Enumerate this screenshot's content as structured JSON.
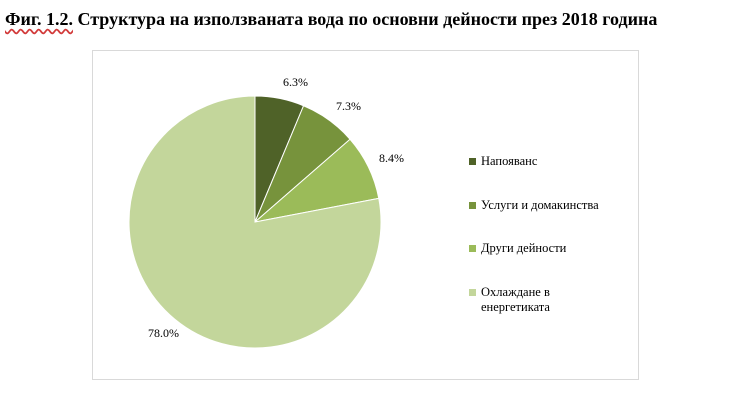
{
  "figure": {
    "prefix": "Фиг. 1.2.",
    "title": "Структура на използваната вода по основни дейности през 2018 година"
  },
  "chart_data": {
    "type": "pie",
    "title": "",
    "legend_position": "right",
    "categories": [
      "Напояванс",
      "Услуги и домакинства",
      "Други дейности",
      "Охлаждане в енергетиката"
    ],
    "values": [
      6.3,
      7.3,
      8.4,
      78.0
    ],
    "labels": [
      "6.3%",
      "7.3%",
      "8.4%",
      "78.0%"
    ],
    "colors": [
      "#4f6228",
      "#77933c",
      "#9bbb59",
      "#c3d69b"
    ],
    "start_angle": "12 o'clock",
    "direction": "clockwise"
  }
}
